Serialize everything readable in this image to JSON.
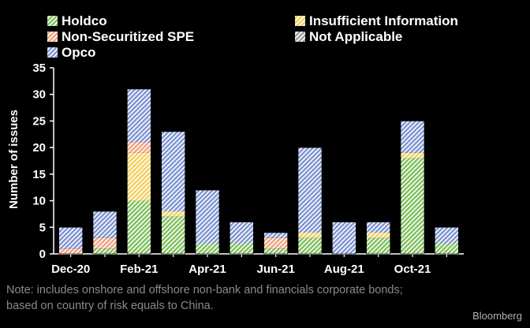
{
  "chart_data": {
    "type": "bar",
    "stacked": true,
    "categories": [
      "Dec-20",
      "Jan-21",
      "Feb-21",
      "Mar-21",
      "Apr-21",
      "May-21",
      "Jun-21",
      "Jul-21",
      "Aug-21",
      "Sep-21",
      "Oct-21",
      "Nov-21"
    ],
    "x_tick_labels": [
      "Dec-20",
      "Feb-21",
      "Apr-21",
      "Jun-21",
      "Aug-21",
      "Oct-21"
    ],
    "series": [
      {
        "name": "Holdco",
        "color": "#7dbf5b",
        "values": [
          0,
          1,
          10,
          7,
          2,
          2,
          1,
          3,
          0,
          3,
          18,
          2
        ]
      },
      {
        "name": "Insufficient Information",
        "color": "#f2cf5b",
        "values": [
          0,
          0,
          9,
          1,
          0,
          0,
          0,
          1,
          0,
          1,
          1,
          0
        ]
      },
      {
        "name": "Non-Securitized SPE",
        "color": "#f2a07b",
        "values": [
          1,
          2,
          2,
          0,
          0,
          0,
          2,
          0,
          0,
          0,
          0,
          0
        ]
      },
      {
        "name": "Not Applicable",
        "color": "#9a9a9a",
        "values": [
          0,
          0,
          0,
          0,
          0,
          0,
          0,
          0,
          0,
          0,
          0,
          0
        ]
      },
      {
        "name": "Opco",
        "color": "#7d93d1",
        "values": [
          4,
          5,
          10,
          15,
          10,
          4,
          1,
          16,
          6,
          2,
          6,
          3
        ]
      }
    ],
    "ylabel": "Number of issues",
    "xlabel": "",
    "ylim": [
      0,
      35
    ],
    "y_ticks": [
      0,
      5,
      10,
      15,
      20,
      25,
      30,
      35
    ],
    "grid": false,
    "legend_position": "top"
  },
  "note": {
    "line1": "Note: includes onshore and offshore non-bank and financials corporate bonds;",
    "line2": "based on country of risk equals to China."
  },
  "source": "Bloomberg"
}
